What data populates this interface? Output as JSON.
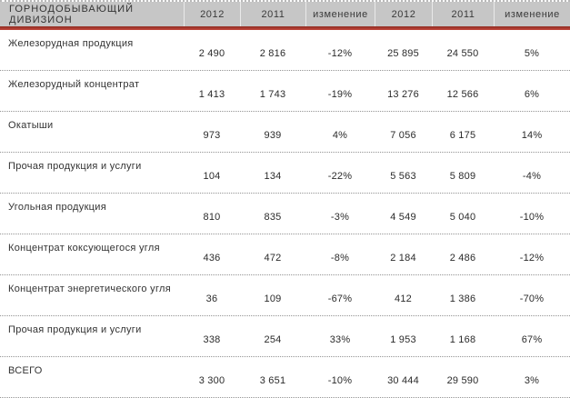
{
  "table": {
    "title": "ГОРНОДОБЫВАЮЩИЙ ДИВИЗИОН",
    "columns": [
      "2012",
      "2011",
      "изменение",
      "2012",
      "2011",
      "изменение"
    ],
    "rows": [
      {
        "label": "Железорудная продукция",
        "values": [
          "2 490",
          "2 816",
          "-12%",
          "25 895",
          "24 550",
          "5%"
        ]
      },
      {
        "label": "Железорудный концентрат",
        "values": [
          "1 413",
          "1 743",
          "-19%",
          "13 276",
          "12 566",
          "6%"
        ]
      },
      {
        "label": "Окатыши",
        "values": [
          "973",
          "939",
          "4%",
          "7 056",
          "6 175",
          "14%"
        ]
      },
      {
        "label": "Прочая продукция и услуги",
        "values": [
          "104",
          "134",
          "-22%",
          "5 563",
          "5 809",
          "-4%"
        ]
      },
      {
        "label": "Угольная продукция",
        "values": [
          "810",
          "835",
          "-3%",
          "4 549",
          "5 040",
          "-10%"
        ]
      },
      {
        "label": "Концентрат коксующегося угля",
        "values": [
          "436",
          "472",
          "-8%",
          "2 184",
          "2 486",
          "-12%"
        ]
      },
      {
        "label": "Концентрат энергетического угля",
        "values": [
          "36",
          "109",
          "-67%",
          "412",
          "1 386",
          "-70%"
        ]
      },
      {
        "label": "Прочая продукция и услуги",
        "values": [
          "338",
          "254",
          "33%",
          "1 953",
          "1 168",
          "67%"
        ]
      },
      {
        "label": "ВСЕГО",
        "values": [
          "3 300",
          "3 651",
          "-10%",
          "30 444",
          "29 590",
          "3%"
        ]
      }
    ],
    "colors": {
      "header_background": "#c6c6c6",
      "accent_rule_top": "#8f2d23",
      "accent_rule_bottom": "#c2463a",
      "row_separator": "#949494"
    }
  }
}
